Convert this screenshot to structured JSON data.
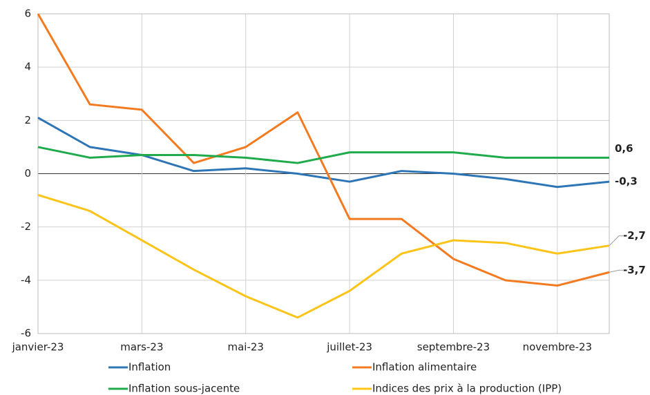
{
  "chart_data": {
    "type": "line",
    "categories": [
      "janvier-23",
      null,
      "mars-23",
      null,
      "mai-23",
      null,
      "juillet-23",
      null,
      "septembre-23",
      null,
      "novembre-23",
      null
    ],
    "series": [
      {
        "name": "Inflation",
        "color": "#2e75b6",
        "label_color": "#2e75b6",
        "values": [
          2.1,
          1.0,
          0.7,
          0.1,
          0.2,
          0.0,
          -0.3,
          0.1,
          0.0,
          -0.2,
          -0.5,
          -0.3
        ],
        "value_labels": [
          null,
          null,
          null,
          null,
          null,
          null,
          null,
          null,
          null,
          null,
          null,
          "-0,3"
        ]
      },
      {
        "name": "Inflation alimentaire",
        "color": "#f47a20",
        "label_color": "#c55a11",
        "values": [
          6.0,
          2.6,
          2.4,
          0.4,
          1.0,
          2.3,
          -1.7,
          -1.7,
          -3.2,
          -4.0,
          -4.2,
          -3.7
        ],
        "value_labels": [
          null,
          null,
          null,
          null,
          null,
          null,
          null,
          null,
          null,
          null,
          null,
          "-3,7"
        ]
      },
      {
        "name": "Inflation sous-jacente",
        "color": "#1fab4b",
        "label_color": "#1fab4b",
        "values": [
          1.0,
          0.6,
          0.7,
          0.7,
          0.6,
          0.4,
          0.8,
          0.8,
          0.8,
          0.6,
          0.6,
          0.6
        ],
        "value_labels": [
          null,
          null,
          null,
          null,
          null,
          null,
          null,
          null,
          null,
          null,
          null,
          "0,6"
        ]
      },
      {
        "name": "Indices des prix à la production (IPP)",
        "color": "#fcc419",
        "label_color": "#fcc419",
        "values": [
          -0.8,
          -1.4,
          -2.5,
          -3.6,
          -4.6,
          -5.4,
          -4.4,
          -3.0,
          -2.5,
          -2.6,
          -3.0,
          -2.7
        ],
        "value_labels": [
          null,
          null,
          null,
          null,
          null,
          null,
          null,
          null,
          null,
          null,
          null,
          "-2,7"
        ]
      }
    ],
    "ylim": [
      -6,
      6
    ],
    "yticks": [
      -6,
      -4,
      -2,
      0,
      2,
      4,
      6
    ],
    "grid": true,
    "legend": "bottom"
  }
}
